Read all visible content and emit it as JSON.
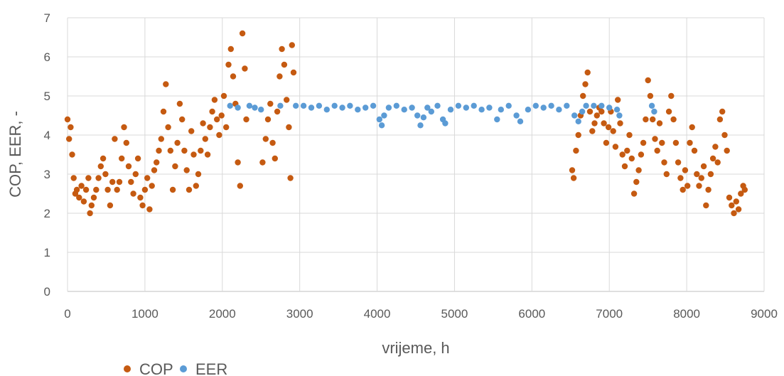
{
  "chart_data": {
    "type": "scatter",
    "title": "",
    "xlabel": "vrijeme, h",
    "ylabel": "COP, EER, -",
    "xlim": [
      0,
      9000
    ],
    "ylim": [
      0,
      7
    ],
    "x_ticks": [
      "0",
      "1000",
      "2000",
      "3000",
      "4000",
      "5000",
      "6000",
      "7000",
      "8000",
      "9000"
    ],
    "y_ticks": [
      "0",
      "1",
      "2",
      "3",
      "4",
      "5",
      "6",
      "7"
    ],
    "grid": true,
    "legend_position": "bottom-left",
    "series": [
      {
        "name": "COP",
        "color": "#C55A11",
        "points": [
          [
            0,
            4.4
          ],
          [
            20,
            3.9
          ],
          [
            40,
            4.2
          ],
          [
            60,
            3.5
          ],
          [
            80,
            2.9
          ],
          [
            100,
            2.5
          ],
          [
            120,
            2.6
          ],
          [
            150,
            2.4
          ],
          [
            180,
            2.7
          ],
          [
            210,
            2.3
          ],
          [
            240,
            2.6
          ],
          [
            270,
            2.9
          ],
          [
            290,
            2.0
          ],
          [
            310,
            2.2
          ],
          [
            340,
            2.4
          ],
          [
            370,
            2.6
          ],
          [
            400,
            2.9
          ],
          [
            430,
            3.2
          ],
          [
            460,
            3.4
          ],
          [
            490,
            3.0
          ],
          [
            520,
            2.6
          ],
          [
            550,
            2.2
          ],
          [
            580,
            2.8
          ],
          [
            610,
            3.9
          ],
          [
            640,
            2.6
          ],
          [
            670,
            2.8
          ],
          [
            700,
            3.4
          ],
          [
            730,
            4.2
          ],
          [
            760,
            3.8
          ],
          [
            790,
            3.2
          ],
          [
            820,
            2.8
          ],
          [
            850,
            2.5
          ],
          [
            880,
            3.0
          ],
          [
            910,
            3.4
          ],
          [
            940,
            2.4
          ],
          [
            970,
            2.2
          ],
          [
            1000,
            2.6
          ],
          [
            1030,
            2.9
          ],
          [
            1060,
            2.1
          ],
          [
            1090,
            2.7
          ],
          [
            1120,
            3.1
          ],
          [
            1150,
            3.3
          ],
          [
            1180,
            3.6
          ],
          [
            1210,
            3.9
          ],
          [
            1240,
            4.6
          ],
          [
            1270,
            5.3
          ],
          [
            1300,
            4.2
          ],
          [
            1330,
            3.6
          ],
          [
            1360,
            2.6
          ],
          [
            1390,
            3.2
          ],
          [
            1420,
            3.8
          ],
          [
            1450,
            4.8
          ],
          [
            1480,
            4.4
          ],
          [
            1510,
            3.6
          ],
          [
            1540,
            3.1
          ],
          [
            1570,
            2.6
          ],
          [
            1600,
            4.1
          ],
          [
            1630,
            3.5
          ],
          [
            1660,
            2.7
          ],
          [
            1690,
            3.0
          ],
          [
            1720,
            3.6
          ],
          [
            1750,
            4.3
          ],
          [
            1780,
            3.9
          ],
          [
            1810,
            3.5
          ],
          [
            1840,
            4.2
          ],
          [
            1870,
            4.6
          ],
          [
            1900,
            4.9
          ],
          [
            1930,
            4.4
          ],
          [
            1960,
            4.0
          ],
          [
            1990,
            4.5
          ],
          [
            2020,
            5.0
          ],
          [
            2050,
            4.2
          ],
          [
            2080,
            5.8
          ],
          [
            2110,
            6.2
          ],
          [
            2140,
            5.5
          ],
          [
            2170,
            4.8
          ],
          [
            2200,
            3.3
          ],
          [
            2230,
            2.7
          ],
          [
            2260,
            6.6
          ],
          [
            2290,
            5.7
          ],
          [
            2310,
            4.4
          ],
          [
            2520,
            3.3
          ],
          [
            2560,
            3.9
          ],
          [
            2590,
            4.4
          ],
          [
            2620,
            4.8
          ],
          [
            2650,
            3.8
          ],
          [
            2680,
            3.4
          ],
          [
            2710,
            4.6
          ],
          [
            2740,
            5.5
          ],
          [
            2770,
            6.2
          ],
          [
            2800,
            5.8
          ],
          [
            2830,
            4.9
          ],
          [
            2860,
            4.2
          ],
          [
            2880,
            2.9
          ],
          [
            2900,
            6.3
          ],
          [
            2920,
            5.6
          ],
          [
            6520,
            3.1
          ],
          [
            6540,
            2.9
          ],
          [
            6570,
            3.6
          ],
          [
            6600,
            4.0
          ],
          [
            6630,
            4.5
          ],
          [
            6660,
            5.0
          ],
          [
            6690,
            5.3
          ],
          [
            6720,
            5.6
          ],
          [
            6750,
            4.6
          ],
          [
            6780,
            4.1
          ],
          [
            6810,
            4.3
          ],
          [
            6840,
            4.5
          ],
          [
            6870,
            4.7
          ],
          [
            6900,
            4.6
          ],
          [
            6930,
            4.3
          ],
          [
            6960,
            3.8
          ],
          [
            6990,
            4.2
          ],
          [
            7020,
            4.6
          ],
          [
            7050,
            4.1
          ],
          [
            7080,
            3.7
          ],
          [
            7110,
            4.9
          ],
          [
            7140,
            4.3
          ],
          [
            7170,
            3.5
          ],
          [
            7200,
            3.2
          ],
          [
            7230,
            3.6
          ],
          [
            7260,
            4.0
          ],
          [
            7290,
            3.4
          ],
          [
            7320,
            2.5
          ],
          [
            7350,
            2.8
          ],
          [
            7380,
            3.1
          ],
          [
            7410,
            3.5
          ],
          [
            7440,
            3.8
          ],
          [
            7470,
            4.4
          ],
          [
            7500,
            5.4
          ],
          [
            7530,
            5.0
          ],
          [
            7560,
            4.4
          ],
          [
            7590,
            3.9
          ],
          [
            7620,
            3.6
          ],
          [
            7650,
            4.3
          ],
          [
            7680,
            3.8
          ],
          [
            7710,
            3.3
          ],
          [
            7740,
            3.0
          ],
          [
            7770,
            4.6
          ],
          [
            7800,
            5.0
          ],
          [
            7830,
            4.4
          ],
          [
            7860,
            3.8
          ],
          [
            7890,
            3.3
          ],
          [
            7920,
            2.9
          ],
          [
            7950,
            2.6
          ],
          [
            7980,
            3.1
          ],
          [
            8010,
            2.7
          ],
          [
            8040,
            3.8
          ],
          [
            8070,
            4.2
          ],
          [
            8100,
            3.6
          ],
          [
            8130,
            3.0
          ],
          [
            8160,
            2.7
          ],
          [
            8190,
            2.9
          ],
          [
            8220,
            3.2
          ],
          [
            8250,
            2.2
          ],
          [
            8280,
            2.6
          ],
          [
            8310,
            3.0
          ],
          [
            8340,
            3.4
          ],
          [
            8370,
            3.7
          ],
          [
            8400,
            3.3
          ],
          [
            8430,
            4.4
          ],
          [
            8460,
            4.6
          ],
          [
            8490,
            4.0
          ],
          [
            8520,
            3.6
          ],
          [
            8550,
            2.4
          ],
          [
            8580,
            2.2
          ],
          [
            8610,
            2.0
          ],
          [
            8640,
            2.3
          ],
          [
            8670,
            2.1
          ],
          [
            8700,
            2.5
          ],
          [
            8730,
            2.7
          ],
          [
            8750,
            2.6
          ]
        ]
      },
      {
        "name": "EER",
        "color": "#5B9BD5",
        "points": [
          [
            2100,
            4.75
          ],
          [
            2200,
            4.7
          ],
          [
            2350,
            4.75
          ],
          [
            2420,
            4.7
          ],
          [
            2500,
            4.65
          ],
          [
            2750,
            4.75
          ],
          [
            2950,
            4.75
          ],
          [
            3050,
            4.75
          ],
          [
            3150,
            4.7
          ],
          [
            3250,
            4.75
          ],
          [
            3350,
            4.65
          ],
          [
            3450,
            4.75
          ],
          [
            3550,
            4.7
          ],
          [
            3650,
            4.75
          ],
          [
            3750,
            4.65
          ],
          [
            3850,
            4.7
          ],
          [
            3950,
            4.75
          ],
          [
            4030,
            4.4
          ],
          [
            4060,
            4.25
          ],
          [
            4090,
            4.5
          ],
          [
            4150,
            4.7
          ],
          [
            4250,
            4.75
          ],
          [
            4350,
            4.65
          ],
          [
            4450,
            4.7
          ],
          [
            4520,
            4.5
          ],
          [
            4560,
            4.25
          ],
          [
            4600,
            4.45
          ],
          [
            4650,
            4.7
          ],
          [
            4700,
            4.6
          ],
          [
            4780,
            4.75
          ],
          [
            4850,
            4.4
          ],
          [
            4880,
            4.3
          ],
          [
            4950,
            4.65
          ],
          [
            5050,
            4.75
          ],
          [
            5150,
            4.7
          ],
          [
            5250,
            4.75
          ],
          [
            5350,
            4.65
          ],
          [
            5450,
            4.7
          ],
          [
            5550,
            4.4
          ],
          [
            5600,
            4.65
          ],
          [
            5700,
            4.75
          ],
          [
            5800,
            4.5
          ],
          [
            5850,
            4.35
          ],
          [
            5950,
            4.65
          ],
          [
            6050,
            4.75
          ],
          [
            6150,
            4.7
          ],
          [
            6250,
            4.75
          ],
          [
            6350,
            4.65
          ],
          [
            6450,
            4.75
          ],
          [
            6550,
            4.5
          ],
          [
            6600,
            4.35
          ],
          [
            6650,
            4.6
          ],
          [
            6700,
            4.75
          ],
          [
            6800,
            4.75
          ],
          [
            6900,
            4.75
          ],
          [
            7000,
            4.7
          ],
          [
            7100,
            4.65
          ],
          [
            7130,
            4.5
          ],
          [
            7550,
            4.75
          ],
          [
            7580,
            4.6
          ]
        ]
      }
    ]
  }
}
